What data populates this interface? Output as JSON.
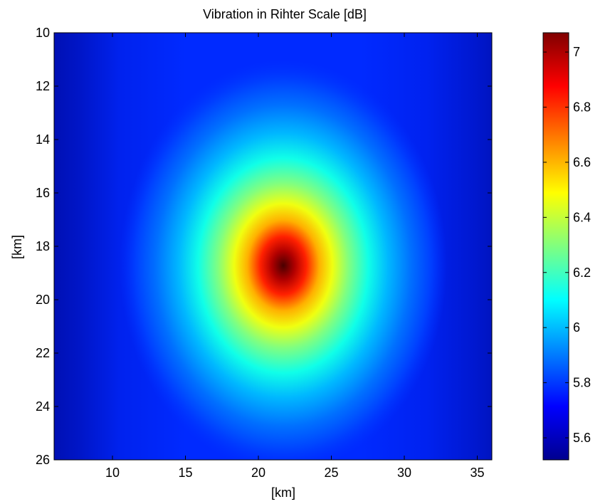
{
  "chart_data": {
    "type": "heatmap",
    "title": "Vibration in Rihter Scale [dB]",
    "xlabel": "[km]",
    "ylabel": "[km]",
    "xlim": [
      6,
      36
    ],
    "ylim": [
      10,
      26
    ],
    "y_reversed": true,
    "x_ticks": [
      10,
      15,
      20,
      25,
      30,
      35
    ],
    "y_ticks": [
      10,
      12,
      14,
      16,
      18,
      20,
      22,
      24,
      26
    ],
    "colormap": "jet",
    "colorbar": {
      "range": [
        5.52,
        7.07
      ],
      "ticks": [
        5.6,
        5.8,
        6,
        6.2,
        6.4,
        6.6,
        6.8,
        7
      ]
    },
    "peak": {
      "x": 20.9,
      "y": 18.8,
      "value": 7.07
    },
    "background_value": 5.62,
    "edge_min_value": 5.53,
    "streaks": [
      {
        "x": 33.8,
        "y_from": 14.6,
        "y_to": 23.1,
        "value": 5.82
      },
      {
        "x": 35.3,
        "y_from": 10.2,
        "y_to": 26.0,
        "value": 5.86
      }
    ],
    "grid": false,
    "colors": {
      "axes": "#000000",
      "background": "#ffffff"
    }
  }
}
